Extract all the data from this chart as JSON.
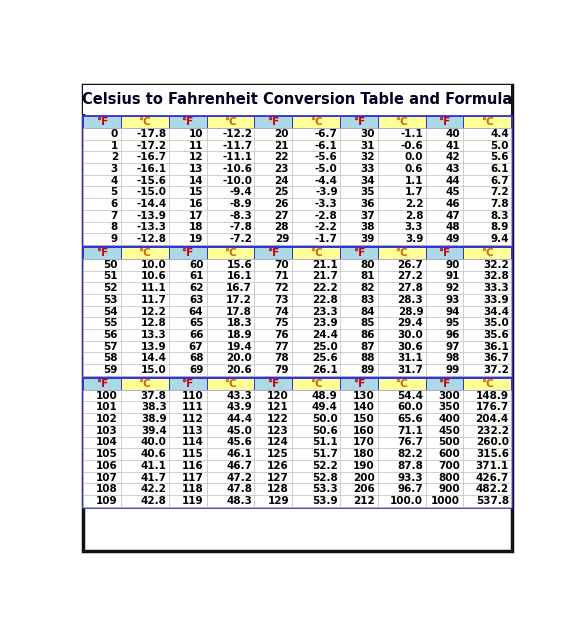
{
  "title": "Celsius to Fahrenheit Conversion Table and Formula",
  "header_label_f": "°F",
  "header_label_c": "°C",
  "section1": {
    "pairs": [
      [
        0,
        -17.8,
        10,
        -12.2,
        20,
        -6.7,
        30,
        -1.1,
        40,
        4.4
      ],
      [
        1,
        -17.2,
        11,
        -11.7,
        21,
        -6.1,
        31,
        -0.6,
        41,
        5.0
      ],
      [
        2,
        -16.7,
        12,
        -11.1,
        22,
        -5.6,
        32,
        0.0,
        42,
        5.6
      ],
      [
        3,
        -16.1,
        13,
        -10.6,
        23,
        -5.0,
        33,
        0.6,
        43,
        6.1
      ],
      [
        4,
        -15.6,
        14,
        -10.0,
        24,
        -4.4,
        34,
        1.1,
        44,
        6.7
      ],
      [
        5,
        -15.0,
        15,
        -9.4,
        25,
        -3.9,
        35,
        1.7,
        45,
        7.2
      ],
      [
        6,
        -14.4,
        16,
        -8.9,
        26,
        -3.3,
        36,
        2.2,
        46,
        7.8
      ],
      [
        7,
        -13.9,
        17,
        -8.3,
        27,
        -2.8,
        37,
        2.8,
        47,
        8.3
      ],
      [
        8,
        -13.3,
        18,
        -7.8,
        28,
        -2.2,
        38,
        3.3,
        48,
        8.9
      ],
      [
        9,
        -12.8,
        19,
        -7.2,
        29,
        -1.7,
        39,
        3.9,
        49,
        9.4
      ]
    ]
  },
  "section2": {
    "pairs": [
      [
        50,
        10.0,
        60,
        15.6,
        70,
        21.1,
        80,
        26.7,
        90,
        32.2
      ],
      [
        51,
        10.6,
        61,
        16.1,
        71,
        21.7,
        81,
        27.2,
        91,
        32.8
      ],
      [
        52,
        11.1,
        62,
        16.7,
        72,
        22.2,
        82,
        27.8,
        92,
        33.3
      ],
      [
        53,
        11.7,
        63,
        17.2,
        73,
        22.8,
        83,
        28.3,
        93,
        33.9
      ],
      [
        54,
        12.2,
        64,
        17.8,
        74,
        23.3,
        84,
        28.9,
        94,
        34.4
      ],
      [
        55,
        12.8,
        65,
        18.3,
        75,
        23.9,
        85,
        29.4,
        95,
        35.0
      ],
      [
        56,
        13.3,
        66,
        18.9,
        76,
        24.4,
        86,
        30.0,
        96,
        35.6
      ],
      [
        57,
        13.9,
        67,
        19.4,
        77,
        25.0,
        87,
        30.6,
        97,
        36.1
      ],
      [
        58,
        14.4,
        68,
        20.0,
        78,
        25.6,
        88,
        31.1,
        98,
        36.7
      ],
      [
        59,
        15.0,
        69,
        20.6,
        79,
        26.1,
        89,
        31.7,
        99,
        37.2
      ]
    ]
  },
  "section3": {
    "pairs": [
      [
        100,
        37.8,
        110,
        43.3,
        120,
        48.9,
        130,
        54.4,
        300,
        148.9
      ],
      [
        101,
        38.3,
        111,
        43.9,
        121,
        49.4,
        140,
        60.0,
        350,
        176.7
      ],
      [
        102,
        38.9,
        112,
        44.4,
        122,
        50.0,
        150,
        65.6,
        400,
        204.4
      ],
      [
        103,
        39.4,
        113,
        45.0,
        123,
        50.6,
        160,
        71.1,
        450,
        232.2
      ],
      [
        104,
        40.0,
        114,
        45.6,
        124,
        51.1,
        170,
        76.7,
        500,
        260.0
      ],
      [
        105,
        40.6,
        115,
        46.1,
        125,
        51.7,
        180,
        82.2,
        600,
        315.6
      ],
      [
        106,
        41.1,
        116,
        46.7,
        126,
        52.2,
        190,
        87.8,
        700,
        371.1
      ],
      [
        107,
        41.7,
        117,
        47.2,
        127,
        52.8,
        200,
        93.3,
        800,
        426.7
      ],
      [
        108,
        42.2,
        118,
        47.8,
        128,
        53.3,
        206,
        96.7,
        900,
        482.2
      ],
      [
        109,
        42.8,
        119,
        48.3,
        129,
        53.9,
        212,
        100.0,
        1000,
        537.8
      ]
    ]
  },
  "yellow_bg": "#FFFF99",
  "light_blue_bg": "#ADD8E6",
  "data_text_color": "#000000",
  "section_border_color": "#3333cc",
  "outer_border_color": "#111111",
  "title_color": "#000022",
  "col_f_bg": "#ADD8E6",
  "col_c_bg": "#FFFF99",
  "col_f_text": "#cc0000",
  "col_c_text": "#cc6600",
  "data_font_size": 7.5,
  "header_font_size": 7.5,
  "title_font_size": 10.5
}
